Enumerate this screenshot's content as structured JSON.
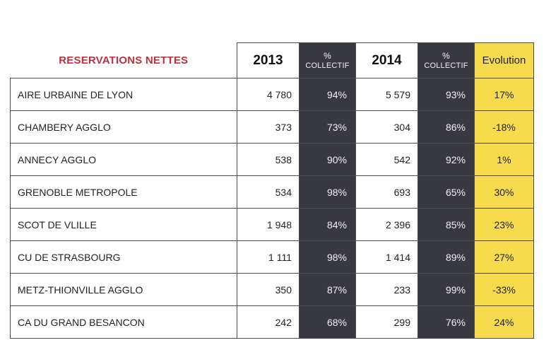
{
  "table": {
    "title": "RESERVATIONS NETTES",
    "headers": {
      "year_2013": "2013",
      "pct_symbol": "%",
      "pct_word": "COLLECTIF",
      "year_2014": "2014",
      "evolution": "Evolution"
    },
    "rows": [
      {
        "name": "AIRE URBAINE DE LYON",
        "v2013": "4 780",
        "p2013": "94%",
        "v2014": "5 579",
        "p2014": "93%",
        "evolution": "17%"
      },
      {
        "name": "CHAMBERY AGGLO",
        "v2013": "373",
        "p2013": "73%",
        "v2014": "304",
        "p2014": "86%",
        "evolution": "-18%"
      },
      {
        "name": "ANNECY AGGLO",
        "v2013": "538",
        "p2013": "90%",
        "v2014": "542",
        "p2014": "92%",
        "evolution": "1%"
      },
      {
        "name": "GRENOBLE METROPOLE",
        "v2013": "534",
        "p2013": "98%",
        "v2014": "693",
        "p2014": "65%",
        "evolution": "30%"
      },
      {
        "name": "SCOT DE VLILLE",
        "v2013": "1 948",
        "p2013": "84%",
        "v2014": "2 396",
        "p2014": "85%",
        "evolution": "23%"
      },
      {
        "name": "CU DE STRASBOURG",
        "v2013": "1 111",
        "p2013": "98%",
        "v2014": "1 414",
        "p2014": "89%",
        "evolution": "27%"
      },
      {
        "name": "METZ-THIONVILLE AGGLO",
        "v2013": "350",
        "p2013": "87%",
        "v2014": "233",
        "p2014": "99%",
        "evolution": "-33%"
      },
      {
        "name": "CA DU GRAND BESANCON",
        "v2013": "242",
        "p2013": "68%",
        "v2014": "299",
        "p2014": "76%",
        "evolution": "24%"
      }
    ],
    "colors": {
      "title": "#b8323f",
      "collectif_column": "#383840",
      "evolution_column": "#f6dc4c"
    }
  }
}
